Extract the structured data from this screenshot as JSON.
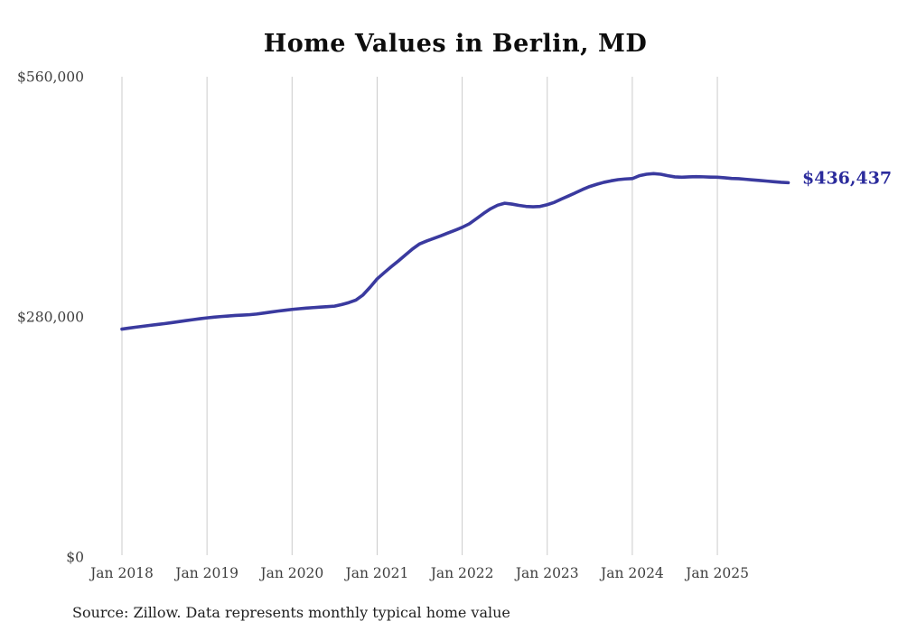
{
  "chart": {
    "title": "Home Values in Berlin, MD",
    "source": "Source: Zillow. Data represents monthly typical home value",
    "end_label": "$436,437",
    "colors": {
      "line": "#3a3a9f",
      "end_label": "#2b2b9c",
      "grid": "#cbcbcb",
      "axis_text": "#3f3f3f",
      "title_text": "#0d0d0d",
      "source_text": "#1f1f1f",
      "background": "#ffffff"
    }
  },
  "chart_data": {
    "type": "line",
    "title": "Home Values in Berlin, MD",
    "xlabel": "",
    "ylabel": "",
    "grid": "vertical-only",
    "legend": "none",
    "ylim": [
      0,
      560000
    ],
    "y_ticks": [
      {
        "value": 0,
        "label": "$0"
      },
      {
        "value": 280000,
        "label": "$280,000"
      },
      {
        "value": 560000,
        "label": "$560,000"
      }
    ],
    "x_tick_labels": [
      "Jan 2018",
      "Jan 2019",
      "Jan 2020",
      "Jan 2021",
      "Jan 2022",
      "Jan 2023",
      "Jan 2024",
      "Jan 2025"
    ],
    "x_start_month": "2018-01",
    "x_end_month": "2025-11",
    "end_value": 436437,
    "end_value_label": "$436,437",
    "series": [
      {
        "name": "Monthly typical home value",
        "values": [
          265700,
          266900,
          268000,
          269100,
          270100,
          271100,
          272100,
          273200,
          274400,
          275600,
          276700,
          277800,
          278800,
          279700,
          280400,
          281000,
          281600,
          282000,
          282500,
          283300,
          284400,
          285600,
          286700,
          287700,
          288700,
          289500,
          290200,
          290800,
          291400,
          291900,
          292500,
          294300,
          296600,
          299500,
          305500,
          314500,
          324300,
          331500,
          338500,
          345200,
          352200,
          359200,
          365100,
          368500,
          371500,
          374500,
          377800,
          381000,
          384400,
          388500,
          394400,
          400500,
          406000,
          410200,
          412500,
          411500,
          410000,
          408800,
          408400,
          408800,
          410800,
          413500,
          417400,
          421000,
          424700,
          428600,
          432000,
          434600,
          436900,
          438600,
          440000,
          440800,
          441200,
          444600,
          446300,
          447000,
          446300,
          444600,
          443200,
          442800,
          443200,
          443500,
          443300,
          443000,
          442800,
          442200,
          441400,
          441100,
          440400,
          439700,
          439000,
          438300,
          437600,
          436900,
          436437
        ]
      }
    ]
  }
}
